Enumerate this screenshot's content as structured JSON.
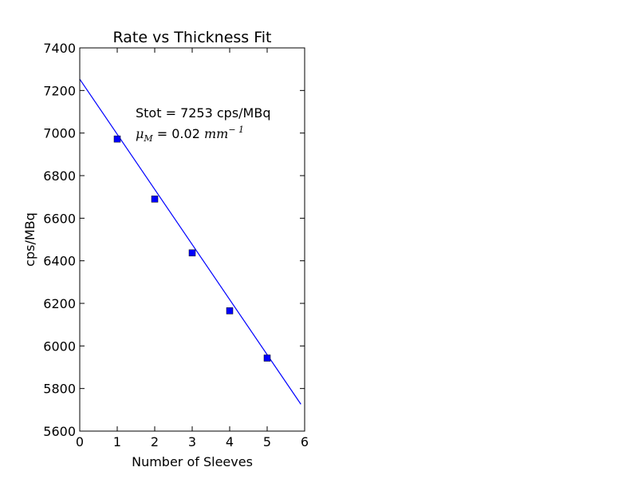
{
  "chart_data": {
    "type": "scatter",
    "title": "Rate vs Thickness Fit",
    "xlabel": "Number of Sleeves",
    "ylabel": "cps/MBq",
    "xlim": [
      0,
      6
    ],
    "ylim": [
      5600,
      7400
    ],
    "x_ticks": [
      "0",
      "1",
      "2",
      "3",
      "4",
      "5",
      "6"
    ],
    "y_ticks": [
      "5600",
      "5800",
      "6000",
      "6200",
      "6400",
      "6600",
      "6800",
      "7000",
      "7200",
      "7400"
    ],
    "grid": false,
    "series": [
      {
        "kind": "markers",
        "marker": "square",
        "color": "#0000ff",
        "x": [
          1,
          2,
          3,
          4,
          5
        ],
        "y": [
          6972,
          6690,
          6437,
          6165,
          5943
        ]
      },
      {
        "kind": "line",
        "color": "#0000ff",
        "x": [
          0,
          5.9
        ],
        "y": [
          7253,
          5726
        ]
      }
    ],
    "annotations": {
      "stot": "Stot = 7253 cps/MBq",
      "mu_symbol": "μ",
      "mu_sub": "M",
      "mu_value": " = 0.02 ",
      "mu_unit": "mm",
      "mu_exp": "− 1"
    }
  }
}
